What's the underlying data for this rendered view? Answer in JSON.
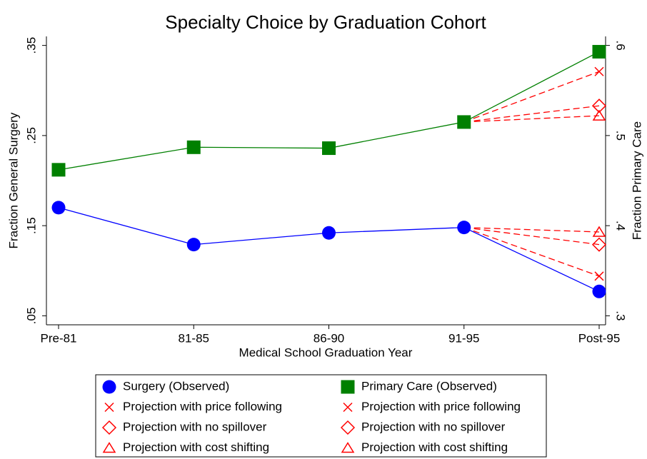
{
  "chart_data": {
    "type": "line",
    "title": "Specialty Choice by Graduation Cohort",
    "xlabel": "Medical School Graduation Year",
    "ylabel": "Fraction General Surgery",
    "y2label": "Fraction Primary Care",
    "categories": [
      "Pre-81",
      "81-85",
      "86-90",
      "91-95",
      "Post-95"
    ],
    "ylim": [
      0.04,
      0.36
    ],
    "yticks": [
      {
        "value": 0.05,
        "label": ".05"
      },
      {
        "value": 0.15,
        "label": ".15"
      },
      {
        "value": 0.25,
        "label": ".25"
      },
      {
        "value": 0.35,
        "label": ".35"
      }
    ],
    "y2lim": [
      0.29,
      0.61
    ],
    "y2ticks": [
      {
        "value": 0.3,
        "label": ".3"
      },
      {
        "value": 0.4,
        "label": ".4"
      },
      {
        "value": 0.5,
        "label": ".5"
      },
      {
        "value": 0.6,
        "label": ".6"
      }
    ],
    "legend": "bottom",
    "series": [
      {
        "name": "Surgery (Observed)",
        "color": "#0000ff",
        "marker": "circle",
        "dash": false,
        "axis": "y",
        "values": [
          0.17,
          0.129,
          0.142,
          0.148,
          0.077
        ]
      },
      {
        "name": "Primary Care (Observed)",
        "color": "#008000",
        "marker": "square",
        "dash": false,
        "axis": "y2",
        "values": [
          0.462,
          0.487,
          0.486,
          0.515,
          0.593
        ]
      },
      {
        "name": "Projection with price following",
        "color": "#ff0000",
        "marker": "x",
        "dash": true,
        "axis": "y",
        "values": [
          null,
          null,
          null,
          0.148,
          0.094
        ]
      },
      {
        "name": "Projection with price following",
        "color": "#ff0000",
        "marker": "x",
        "dash": true,
        "axis": "y2",
        "values": [
          null,
          null,
          null,
          0.515,
          0.571
        ]
      },
      {
        "name": "Projection with no spillover",
        "color": "#ff0000",
        "marker": "diamond",
        "dash": true,
        "axis": "y",
        "values": [
          null,
          null,
          null,
          0.148,
          0.129
        ]
      },
      {
        "name": "Projection with no spillover",
        "color": "#ff0000",
        "marker": "diamond",
        "dash": true,
        "axis": "y2",
        "values": [
          null,
          null,
          null,
          0.515,
          0.533
        ]
      },
      {
        "name": "Projection with cost shifting",
        "color": "#ff0000",
        "marker": "triangle",
        "dash": true,
        "axis": "y",
        "values": [
          null,
          null,
          null,
          0.148,
          0.143
        ]
      },
      {
        "name": "Projection with cost shifting",
        "color": "#ff0000",
        "marker": "triangle",
        "dash": true,
        "axis": "y2",
        "values": [
          null,
          null,
          null,
          0.515,
          0.522
        ]
      }
    ]
  }
}
